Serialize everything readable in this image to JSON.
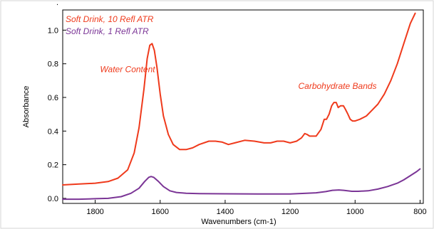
{
  "chart_data": {
    "type": "line",
    "xlabel": "Wavenumbers (cm-1)",
    "ylabel": "Absorbance",
    "xlim": [
      1900,
      790
    ],
    "ylim": [
      -0.03,
      1.12
    ],
    "x_reversed": true,
    "xticks": [
      1800,
      1600,
      1400,
      1200,
      1000,
      800
    ],
    "yticks": [
      0.0,
      0.2,
      0.4,
      0.6,
      0.8,
      1.0
    ],
    "series": [
      {
        "name": "Soft Drink, 10 Refl ATR",
        "color": "#ef3a1c",
        "points": [
          [
            1900,
            0.08
          ],
          [
            1850,
            0.085
          ],
          [
            1800,
            0.09
          ],
          [
            1760,
            0.1
          ],
          [
            1730,
            0.12
          ],
          [
            1700,
            0.17
          ],
          [
            1680,
            0.27
          ],
          [
            1665,
            0.42
          ],
          [
            1650,
            0.65
          ],
          [
            1640,
            0.83
          ],
          [
            1632,
            0.91
          ],
          [
            1625,
            0.92
          ],
          [
            1618,
            0.88
          ],
          [
            1610,
            0.78
          ],
          [
            1600,
            0.62
          ],
          [
            1590,
            0.49
          ],
          [
            1575,
            0.38
          ],
          [
            1560,
            0.32
          ],
          [
            1540,
            0.29
          ],
          [
            1520,
            0.29
          ],
          [
            1500,
            0.3
          ],
          [
            1480,
            0.32
          ],
          [
            1450,
            0.34
          ],
          [
            1430,
            0.34
          ],
          [
            1410,
            0.335
          ],
          [
            1390,
            0.32
          ],
          [
            1370,
            0.33
          ],
          [
            1340,
            0.345
          ],
          [
            1310,
            0.34
          ],
          [
            1280,
            0.33
          ],
          [
            1260,
            0.33
          ],
          [
            1240,
            0.34
          ],
          [
            1220,
            0.34
          ],
          [
            1200,
            0.33
          ],
          [
            1180,
            0.34
          ],
          [
            1165,
            0.36
          ],
          [
            1155,
            0.385
          ],
          [
            1148,
            0.38
          ],
          [
            1140,
            0.37
          ],
          [
            1120,
            0.37
          ],
          [
            1105,
            0.41
          ],
          [
            1095,
            0.47
          ],
          [
            1088,
            0.47
          ],
          [
            1080,
            0.5
          ],
          [
            1072,
            0.55
          ],
          [
            1065,
            0.57
          ],
          [
            1058,
            0.57
          ],
          [
            1052,
            0.54
          ],
          [
            1045,
            0.55
          ],
          [
            1036,
            0.55
          ],
          [
            1030,
            0.53
          ],
          [
            1022,
            0.5
          ],
          [
            1015,
            0.47
          ],
          [
            1008,
            0.46
          ],
          [
            1000,
            0.46
          ],
          [
            985,
            0.47
          ],
          [
            965,
            0.49
          ],
          [
            950,
            0.52
          ],
          [
            930,
            0.56
          ],
          [
            910,
            0.62
          ],
          [
            890,
            0.7
          ],
          [
            870,
            0.8
          ],
          [
            850,
            0.92
          ],
          [
            830,
            1.04
          ],
          [
            815,
            1.1
          ]
        ]
      },
      {
        "name": "Soft Drink, 1 Refl ATR",
        "color": "#7b3596",
        "points": [
          [
            1900,
            -0.005
          ],
          [
            1850,
            -0.005
          ],
          [
            1800,
            -0.002
          ],
          [
            1760,
            0.0
          ],
          [
            1720,
            0.01
          ],
          [
            1690,
            0.03
          ],
          [
            1665,
            0.06
          ],
          [
            1648,
            0.1
          ],
          [
            1635,
            0.125
          ],
          [
            1628,
            0.13
          ],
          [
            1620,
            0.125
          ],
          [
            1605,
            0.1
          ],
          [
            1590,
            0.07
          ],
          [
            1570,
            0.045
          ],
          [
            1550,
            0.035
          ],
          [
            1520,
            0.03
          ],
          [
            1480,
            0.028
          ],
          [
            1400,
            0.027
          ],
          [
            1300,
            0.026
          ],
          [
            1200,
            0.026
          ],
          [
            1150,
            0.03
          ],
          [
            1120,
            0.033
          ],
          [
            1090,
            0.04
          ],
          [
            1070,
            0.048
          ],
          [
            1050,
            0.05
          ],
          [
            1035,
            0.048
          ],
          [
            1010,
            0.042
          ],
          [
            990,
            0.042
          ],
          [
            960,
            0.045
          ],
          [
            930,
            0.055
          ],
          [
            900,
            0.07
          ],
          [
            870,
            0.09
          ],
          [
            850,
            0.11
          ],
          [
            830,
            0.135
          ],
          [
            810,
            0.16
          ],
          [
            800,
            0.175
          ]
        ]
      }
    ],
    "annotations": [
      {
        "text": "Water Content",
        "x": 1785,
        "y": 0.75,
        "color": "#ef3a1c"
      },
      {
        "text": "Carbohydrate Bands",
        "x": 1175,
        "y": 0.65,
        "color": "#ef3a1c"
      }
    ]
  }
}
